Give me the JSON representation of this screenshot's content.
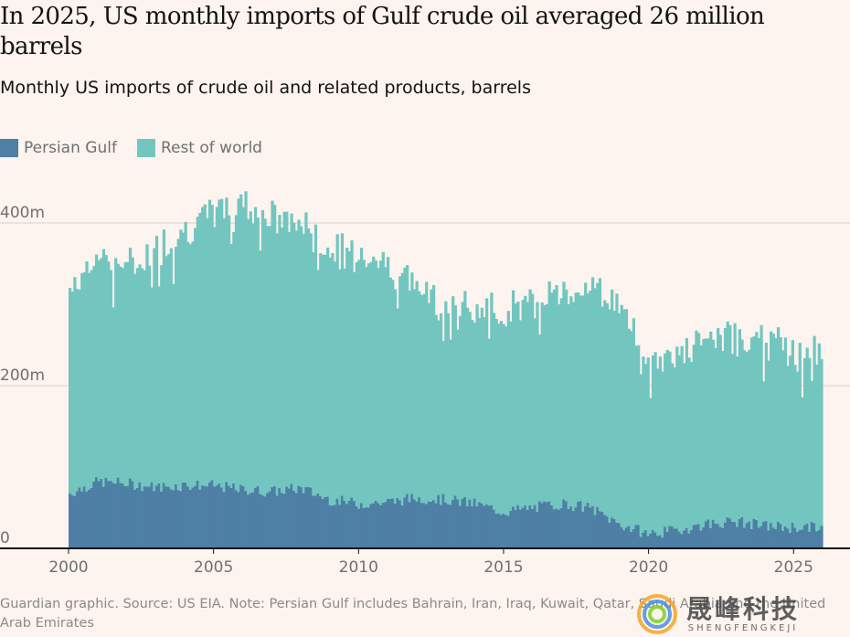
{
  "header": {
    "title": "In 2025, US monthly imports of Gulf crude oil averaged 26 million barrels",
    "subtitle": "Monthly US imports of crude oil and related products, barrels"
  },
  "legend": [
    {
      "label": "Persian Gulf",
      "color": "#4e7fa5"
    },
    {
      "label": "Rest of world",
      "color": "#72c6bf"
    }
  ],
  "footer": "Guardian graphic. Source: US EIA. Note: Persian Gulf includes Bahrain, Iran, Iraq, Kuwait, Qatar, Saudi Arabia and the United Arab Emirates",
  "watermark": {
    "cn": "晟峰科技",
    "en": "SHENGFENGKEJI"
  },
  "colors": {
    "gulf": "#4e7fa5",
    "rest": "#72c6bf",
    "grid": "#d9cfcb",
    "axis": "#121212",
    "tick_label": "#707070"
  },
  "chart_data": {
    "type": "area",
    "stacked": true,
    "x_tick_labels": [
      "2000",
      "2005",
      "2010",
      "2015",
      "2020",
      "2025"
    ],
    "y_tick_labels": [
      "0",
      "200m",
      "400m"
    ],
    "y_ticks": [
      0,
      200,
      400
    ],
    "ylim": [
      0,
      450
    ],
    "unit": "million barrels",
    "x_range": [
      "2000-01",
      "2026-01"
    ],
    "x_anchor_years": [
      2000,
      2001,
      2002,
      2003,
      2004,
      2005,
      2006,
      2007,
      2008,
      2009,
      2010,
      2011,
      2012,
      2013,
      2014,
      2015,
      2016,
      2017,
      2018,
      2019,
      2020,
      2021,
      2022,
      2023,
      2024,
      2025,
      2026
    ],
    "series": [
      {
        "name": "Persian Gulf",
        "anchors": [
          68,
          82,
          80,
          75,
          78,
          77,
          72,
          70,
          74,
          60,
          55,
          57,
          62,
          60,
          55,
          45,
          50,
          55,
          50,
          30,
          18,
          22,
          30,
          33,
          28,
          26,
          26
        ]
      },
      {
        "name": "Rest of world",
        "anchors": [
          250,
          278,
          265,
          293,
          315,
          335,
          355,
          335,
          325,
          305,
          315,
          290,
          260,
          245,
          235,
          248,
          250,
          265,
          270,
          270,
          215,
          215,
          225,
          228,
          230,
          213,
          215
        ]
      }
    ]
  }
}
